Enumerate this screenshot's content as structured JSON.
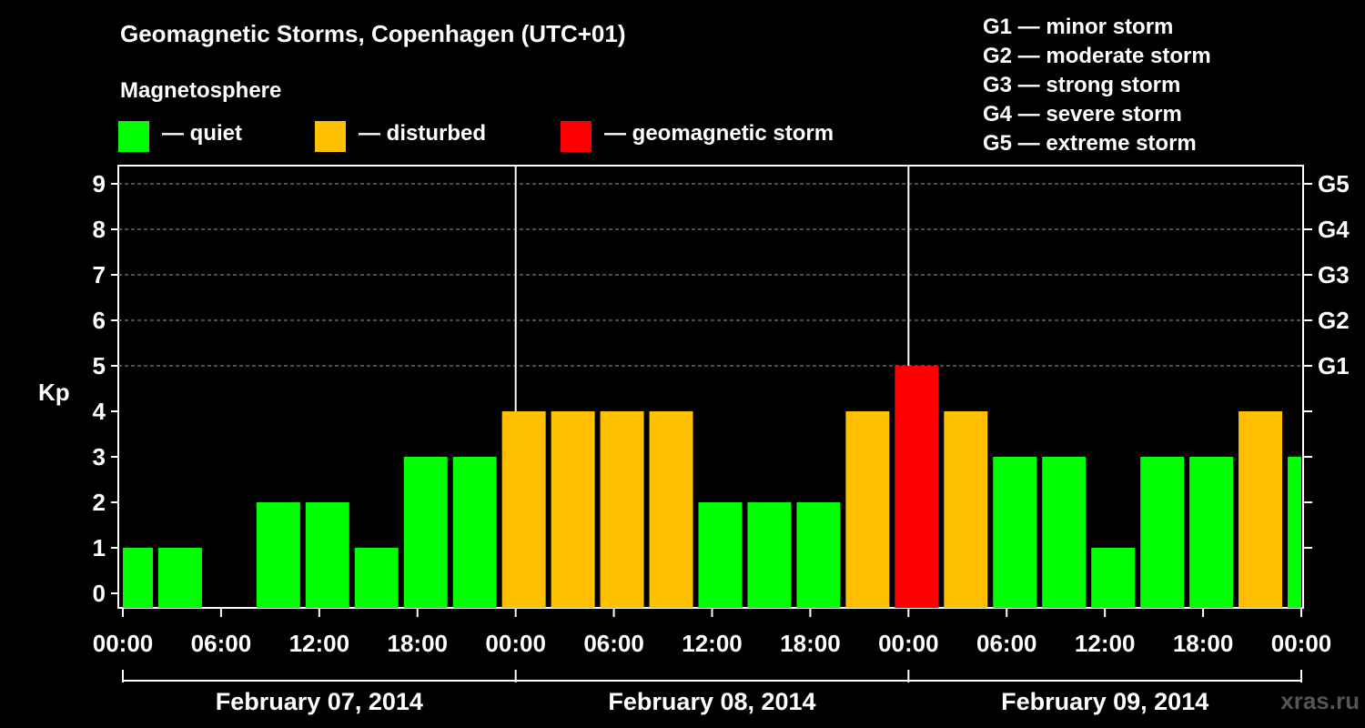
{
  "title": "Geomagnetic Storms, Copenhagen (UTC+01)",
  "subtitle": "Magnetosphere",
  "legend": [
    {
      "label": "— quiet",
      "color": "#00ff00"
    },
    {
      "label": "— disturbed",
      "color": "#ffc000"
    },
    {
      "label": "— geomagnetic storm",
      "color": "#ff0000"
    }
  ],
  "storm_scale": [
    "G1 — minor storm",
    "G2 — moderate storm",
    "G3 — strong storm",
    "G4 — severe storm",
    "G5 — extreme storm"
  ],
  "watermark": "xras.ru",
  "chart_data": {
    "type": "bar",
    "title": "Geomagnetic Storms, Copenhagen (UTC+01)",
    "ylabel": "Kp",
    "ylim": [
      0,
      9
    ],
    "yticks": [
      "0",
      "1",
      "2",
      "3",
      "4",
      "5",
      "6",
      "7",
      "8",
      "9"
    ],
    "right_ticks": [
      {
        "kp": 5,
        "label": "G1"
      },
      {
        "kp": 6,
        "label": "G2"
      },
      {
        "kp": 7,
        "label": "G3"
      },
      {
        "kp": 8,
        "label": "G4"
      },
      {
        "kp": 9,
        "label": "G5"
      }
    ],
    "xtick_labels": [
      "00:00",
      "06:00",
      "12:00",
      "18:00",
      "00:00",
      "06:00",
      "12:00",
      "18:00",
      "00:00",
      "06:00",
      "12:00",
      "18:00",
      "00:00"
    ],
    "dates": [
      "February 07, 2014",
      "February 08, 2014",
      "February 09, 2014"
    ],
    "grid": true,
    "bars": [
      {
        "start_hour": 0,
        "end_hour": 2,
        "kp": 1,
        "status": "quiet"
      },
      {
        "start_hour": 2,
        "end_hour": 5,
        "kp": 1,
        "status": "quiet"
      },
      {
        "start_hour": 5,
        "end_hour": 8,
        "kp": 0,
        "status": "quiet"
      },
      {
        "start_hour": 8,
        "end_hour": 11,
        "kp": 2,
        "status": "quiet"
      },
      {
        "start_hour": 11,
        "end_hour": 14,
        "kp": 2,
        "status": "quiet"
      },
      {
        "start_hour": 14,
        "end_hour": 17,
        "kp": 1,
        "status": "quiet"
      },
      {
        "start_hour": 17,
        "end_hour": 20,
        "kp": 3,
        "status": "quiet"
      },
      {
        "start_hour": 20,
        "end_hour": 23,
        "kp": 3,
        "status": "quiet"
      },
      {
        "start_hour": 23,
        "end_hour": 26,
        "kp": 4,
        "status": "disturbed"
      },
      {
        "start_hour": 26,
        "end_hour": 29,
        "kp": 4,
        "status": "disturbed"
      },
      {
        "start_hour": 29,
        "end_hour": 32,
        "kp": 4,
        "status": "disturbed"
      },
      {
        "start_hour": 32,
        "end_hour": 35,
        "kp": 4,
        "status": "disturbed"
      },
      {
        "start_hour": 35,
        "end_hour": 38,
        "kp": 2,
        "status": "quiet"
      },
      {
        "start_hour": 38,
        "end_hour": 41,
        "kp": 2,
        "status": "quiet"
      },
      {
        "start_hour": 41,
        "end_hour": 44,
        "kp": 2,
        "status": "quiet"
      },
      {
        "start_hour": 44,
        "end_hour": 47,
        "kp": 4,
        "status": "disturbed"
      },
      {
        "start_hour": 47,
        "end_hour": 50,
        "kp": 5,
        "status": "storm"
      },
      {
        "start_hour": 50,
        "end_hour": 53,
        "kp": 4,
        "status": "disturbed"
      },
      {
        "start_hour": 53,
        "end_hour": 56,
        "kp": 3,
        "status": "quiet"
      },
      {
        "start_hour": 56,
        "end_hour": 59,
        "kp": 3,
        "status": "quiet"
      },
      {
        "start_hour": 59,
        "end_hour": 62,
        "kp": 1,
        "status": "quiet"
      },
      {
        "start_hour": 62,
        "end_hour": 65,
        "kp": 3,
        "status": "quiet"
      },
      {
        "start_hour": 65,
        "end_hour": 68,
        "kp": 3,
        "status": "quiet"
      },
      {
        "start_hour": 68,
        "end_hour": 71,
        "kp": 4,
        "status": "disturbed"
      },
      {
        "start_hour": 71,
        "end_hour": 72,
        "kp": 3,
        "status": "quiet"
      }
    ],
    "colors": {
      "quiet": "#00ff00",
      "disturbed": "#ffc000",
      "storm": "#ff0000"
    }
  }
}
